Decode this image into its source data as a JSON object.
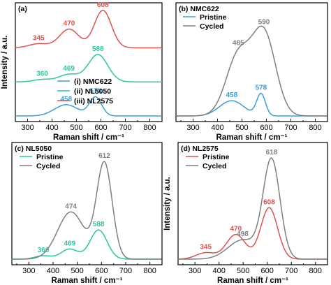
{
  "colors": {
    "NMC622": "#3a9fd6",
    "NL5050": "#2ec4a0",
    "NL2575": "#d9534f",
    "Pristine_b": "#3a9fd6",
    "Pristine_c": "#2ec4a0",
    "Pristine_d": "#d9534f",
    "Cycled": "#7f7f7f"
  },
  "chart_data": [
    {
      "id": "a",
      "type": "line",
      "title": "(a)",
      "xlabel": "Raman shift / cm⁻¹",
      "ylabel": "Intensity / a.u.",
      "xlim": [
        250,
        850
      ],
      "xticks": [
        300,
        400,
        500,
        600,
        700,
        800
      ],
      "xtick_labels": [
        "300",
        "400",
        "500",
        "600",
        "700",
        "800"
      ],
      "legend": {
        "position": "lower-center",
        "entries": [
          "(i) NMC622",
          "(ii) NL5050",
          "(iii) NL2575"
        ]
      },
      "series": [
        {
          "name": "(i) NMC622",
          "color_key": "NMC622",
          "offset": 0.0,
          "peaks": [
            {
              "x": 458,
              "h": 0.33,
              "w": 48
            },
            {
              "x": 578,
              "h": 0.55,
              "w": 25
            }
          ],
          "labels": [
            {
              "x": 458,
              "text": "458"
            },
            {
              "x": 578,
              "text": "578"
            }
          ]
        },
        {
          "name": "(ii) NL5050",
          "color_key": "NL5050",
          "offset": 1.0,
          "peaks": [
            {
              "x": 360,
              "h": 0.07,
              "w": 35
            },
            {
              "x": 469,
              "h": 0.22,
              "w": 42
            },
            {
              "x": 588,
              "h": 0.8,
              "w": 40
            }
          ],
          "labels": [
            {
              "x": 360,
              "text": "360"
            },
            {
              "x": 469,
              "text": "469"
            },
            {
              "x": 588,
              "text": "588"
            }
          ]
        },
        {
          "name": "(iii) NL2575",
          "color_key": "NL2575",
          "offset": 2.0,
          "peaks": [
            {
              "x": 345,
              "h": 0.12,
              "w": 40
            },
            {
              "x": 470,
              "h": 0.55,
              "w": 40
            },
            {
              "x": 608,
              "h": 1.1,
              "w": 35
            }
          ],
          "labels": [
            {
              "x": 345,
              "text": "345"
            },
            {
              "x": 470,
              "text": "470"
            },
            {
              "x": 608,
              "text": "608"
            }
          ]
        }
      ]
    },
    {
      "id": "b",
      "type": "line",
      "title": "(b) NMC622",
      "xlabel": "Raman shift / cm⁻¹",
      "ylabel": "",
      "xlim": [
        230,
        850
      ],
      "xticks": [
        300,
        400,
        500,
        600,
        700,
        800
      ],
      "xtick_labels": [
        "300",
        "400",
        "500",
        "600",
        "700",
        "800"
      ],
      "legend": {
        "position": "top-left",
        "entries": [
          "Pristine",
          "Cycled"
        ]
      },
      "series": [
        {
          "name": "Pristine",
          "color_key": "Pristine_b",
          "offset": 0.0,
          "peaks": [
            {
              "x": 458,
              "h": 0.14,
              "w": 50
            },
            {
              "x": 578,
              "h": 0.2,
              "w": 18
            }
          ],
          "labels": [
            {
              "x": 458,
              "text": "458"
            },
            {
              "x": 578,
              "text": "578"
            }
          ]
        },
        {
          "name": "Cycled",
          "color_key": "Cycled",
          "offset": 0.0,
          "peaks": [
            {
              "x": 485,
              "h": 0.55,
              "w": 50
            },
            {
              "x": 590,
              "h": 0.75,
              "w": 48
            }
          ],
          "labels": [
            {
              "x": 485,
              "text": "485"
            },
            {
              "x": 590,
              "text": "590"
            }
          ]
        }
      ]
    },
    {
      "id": "c",
      "type": "line",
      "title": "(c) NL5050",
      "xlabel": "Raman shift / cm⁻¹",
      "ylabel": "",
      "xlim": [
        230,
        850
      ],
      "xticks": [
        300,
        400,
        500,
        600,
        700,
        800
      ],
      "xtick_labels": [
        "300",
        "400",
        "500",
        "600",
        "700",
        "800"
      ],
      "legend": {
        "position": "top-left",
        "entries": [
          "Pristine",
          "Cycled"
        ]
      },
      "series": [
        {
          "name": "Pristine",
          "color_key": "Pristine_c",
          "offset": 0.0,
          "peaks": [
            {
              "x": 360,
              "h": 0.03,
              "w": 35
            },
            {
              "x": 469,
              "h": 0.09,
              "w": 35
            },
            {
              "x": 588,
              "h": 0.26,
              "w": 35
            }
          ],
          "labels": [
            {
              "x": 360,
              "text": "360"
            },
            {
              "x": 469,
              "text": "469"
            },
            {
              "x": 588,
              "text": "588"
            }
          ]
        },
        {
          "name": "Cycled",
          "color_key": "Cycled",
          "offset": 0.0,
          "peaks": [
            {
              "x": 474,
              "h": 0.42,
              "w": 55
            },
            {
              "x": 612,
              "h": 0.85,
              "w": 32
            }
          ],
          "labels": [
            {
              "x": 474,
              "text": "474"
            },
            {
              "x": 612,
              "text": "612"
            }
          ]
        }
      ]
    },
    {
      "id": "d",
      "type": "line",
      "title": "(d) NL2575",
      "xlabel": "Raman shift / cm⁻¹",
      "ylabel": "Intensity / a.u.",
      "xlim": [
        230,
        850
      ],
      "xticks": [
        300,
        400,
        500,
        600,
        700,
        800
      ],
      "xtick_labels": [
        "300",
        "400",
        "500",
        "600",
        "700",
        "800"
      ],
      "legend": {
        "position": "top-left",
        "entries": [
          "Pristine",
          "Cycled"
        ]
      },
      "series": [
        {
          "name": "Pristine",
          "color_key": "Pristine_d",
          "offset": 0.0,
          "peaks": [
            {
              "x": 345,
              "h": 0.06,
              "w": 40
            },
            {
              "x": 470,
              "h": 0.23,
              "w": 40
            },
            {
              "x": 608,
              "h": 0.48,
              "w": 35
            }
          ],
          "labels": [
            {
              "x": 345,
              "text": "345"
            },
            {
              "x": 470,
              "text": "470"
            },
            {
              "x": 608,
              "text": "608"
            }
          ]
        },
        {
          "name": "Cycled",
          "color_key": "Cycled",
          "offset": 0.0,
          "peaks": [
            {
              "x": 498,
              "h": 0.18,
              "w": 60
            },
            {
              "x": 618,
              "h": 0.92,
              "w": 35
            }
          ],
          "labels": [
            {
              "x": 498,
              "text": "498"
            },
            {
              "x": 618,
              "text": "618"
            }
          ]
        }
      ]
    }
  ]
}
